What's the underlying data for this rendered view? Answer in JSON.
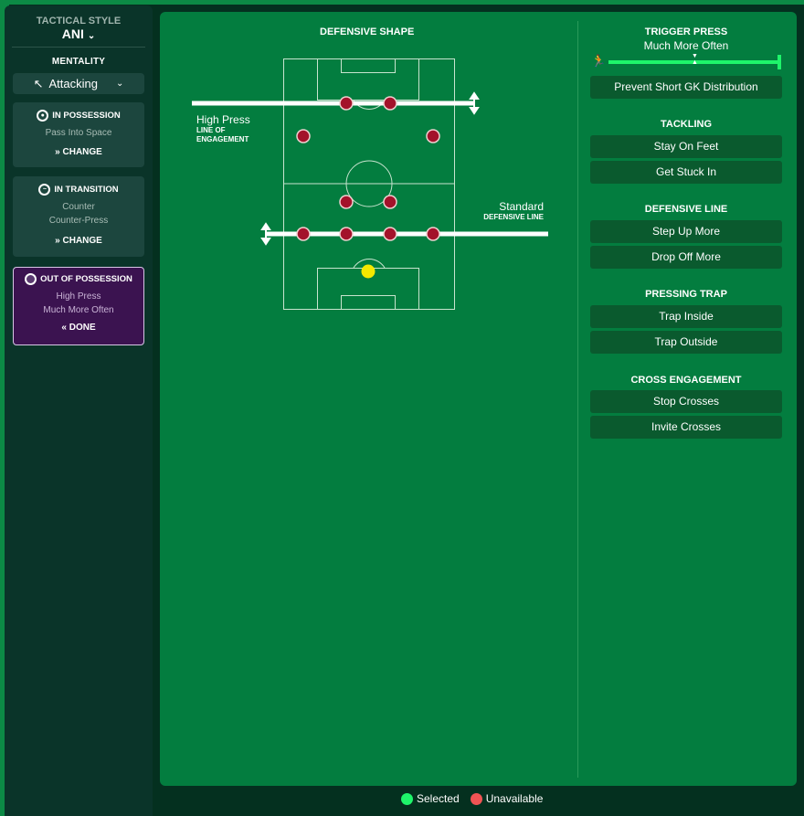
{
  "sidebar": {
    "tactical_style_label": "TACTICAL STYLE",
    "tactical_style_value": "ANI",
    "mentality_label": "MENTALITY",
    "mentality_value": "Attacking",
    "in_possession": {
      "title": "IN POSSESSION",
      "lines": [
        "Pass Into Space"
      ],
      "action": "CHANGE"
    },
    "in_transition": {
      "title": "IN TRANSITION",
      "lines": [
        "Counter",
        "Counter-Press"
      ],
      "action": "CHANGE"
    },
    "out_of_possession": {
      "title": "OUT OF POSSESSION",
      "lines": [
        "High Press",
        "Much More Often"
      ],
      "action": "DONE"
    }
  },
  "shape": {
    "title": "DEFENSIVE SHAPE",
    "loe_value": "High Press",
    "loe_label": "LINE OF ENGAGEMENT",
    "dl_value": "Standard",
    "dl_label": "DEFENSIVE LINE"
  },
  "trigger_press": {
    "title": "TRIGGER PRESS",
    "value": "Much More Often",
    "slider_level_percent": 100,
    "option": "Prevent Short GK Distribution"
  },
  "tackling": {
    "title": "TACKLING",
    "options": [
      "Stay On Feet",
      "Get Stuck In"
    ]
  },
  "defensive_line": {
    "title": "DEFENSIVE LINE",
    "options": [
      "Step Up More",
      "Drop Off More"
    ]
  },
  "pressing_trap": {
    "title": "PRESSING TRAP",
    "options": [
      "Trap Inside",
      "Trap Outside"
    ]
  },
  "cross_engagement": {
    "title": "CROSS ENGAGEMENT",
    "options": [
      "Stop Crosses",
      "Invite Crosses"
    ]
  },
  "legend": {
    "selected": "Selected",
    "unavailable": "Unavailable"
  },
  "colors": {
    "selected": "#1ef56a",
    "unavailable": "#f05454",
    "player": "#a3122a",
    "goalkeeper": "#f4e800",
    "panel": "#037d3f",
    "oop_card": "#3b1350"
  }
}
